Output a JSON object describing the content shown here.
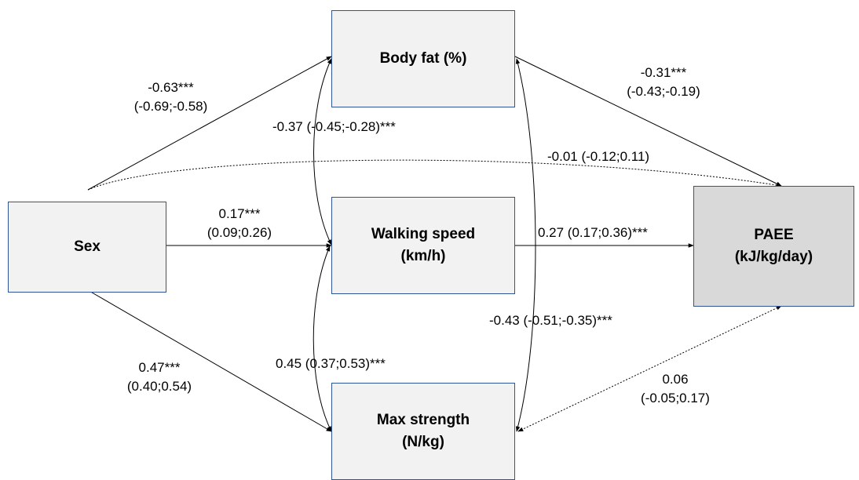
{
  "nodes": {
    "sex": {
      "line1": "Sex",
      "line2": ""
    },
    "body_fat": {
      "line1": "Body fat (%)",
      "line2": ""
    },
    "walking_speed": {
      "line1": "Walking speed",
      "line2": "(km/h)"
    },
    "max_strength": {
      "line1": "Max strength",
      "line2": "(N/kg)"
    },
    "paee": {
      "line1": "PAEE",
      "line2": "(kJ/kg/day)"
    }
  },
  "colors": {
    "node_fill": "#f2f2f2",
    "outcome_fill": "#d9d9d9",
    "node_border": "#2f5597",
    "arrow": "#000000"
  },
  "edges": {
    "sex_bodyfat": {
      "line1": "-0.63***",
      "line2": "(-0.69;-0.58)"
    },
    "sex_walking": {
      "line1": "0.17***",
      "line2": "(0.09;0.26)"
    },
    "sex_strength": {
      "line1": "0.47***",
      "line2": "(0.40;0.54)"
    },
    "bodyfat_paee": {
      "line1": "-0.31***",
      "line2": "(-0.43;-0.19)"
    },
    "walking_paee": {
      "line1": "0.27 (0.17;0.36)***"
    },
    "strength_paee": {
      "line1": "0.06",
      "line2": "(-0.05;0.17)"
    },
    "sex_paee": {
      "line1": "-0.01 (-0.12;0.11)"
    },
    "bodyfat_walking": {
      "line1": "-0.37 (-0.45;-0.28)***"
    },
    "walking_strength": {
      "line1": "0.45 (0.37;0.53)***"
    },
    "bodyfat_strength": {
      "line1": "-0.43 (-0.51;-0.35)***"
    }
  }
}
